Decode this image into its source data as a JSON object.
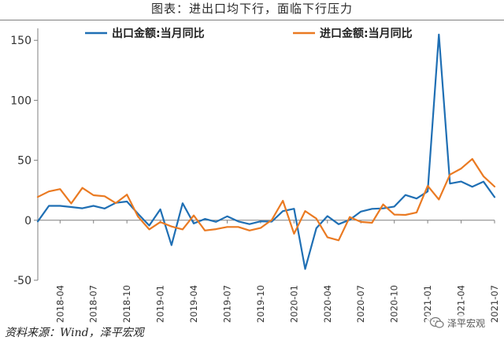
{
  "title": "图表：进出口均下行，面临下行压力",
  "source": "资料来源：Wind，泽平宏观",
  "watermark": "泽平宏观",
  "chart_data": {
    "type": "line",
    "ylim": [
      -50,
      160
    ],
    "yticks": [
      -50,
      0,
      50,
      100,
      150
    ],
    "xticks": [
      "2018-04",
      "2018-07",
      "2018-10",
      "2019-01",
      "2019-04",
      "2019-07",
      "2019-10",
      "2020-01",
      "2020-04",
      "2020-07",
      "2020-10",
      "2021-01",
      "2021-04",
      "2021-07"
    ],
    "x": [
      "2018-02",
      "2018-03",
      "2018-04",
      "2018-05",
      "2018-06",
      "2018-07",
      "2018-08",
      "2018-09",
      "2018-10",
      "2018-11",
      "2018-12",
      "2019-01",
      "2019-02",
      "2019-03",
      "2019-04",
      "2019-05",
      "2019-06",
      "2019-07",
      "2019-08",
      "2019-09",
      "2019-10",
      "2019-11",
      "2019-12",
      "2020-01",
      "2020-02",
      "2020-03",
      "2020-04",
      "2020-05",
      "2020-06",
      "2020-07",
      "2020-08",
      "2020-09",
      "2020-10",
      "2020-11",
      "2020-12",
      "2021-01",
      "2021-02",
      "2021-03",
      "2021-04",
      "2021-05",
      "2021-06",
      "2021-07"
    ],
    "grid": false,
    "legend_position": "top",
    "series": [
      {
        "name": "出口金额:当月同比",
        "color": "#1f6fb4",
        "values": [
          -1,
          12,
          12,
          11,
          10,
          12,
          9.8,
          14.5,
          15.6,
          5.4,
          -4.4,
          9.1,
          -20.7,
          14.2,
          -2.7,
          1.1,
          -1.3,
          3.3,
          -1,
          -3.2,
          -0.9,
          -1.1,
          7.6,
          9.6,
          -40.6,
          -6.6,
          3.5,
          -3.3,
          0.4,
          7.2,
          9.5,
          9.9,
          11.4,
          21.1,
          18.1,
          24,
          154.9,
          30.6,
          32.3,
          27.9,
          32.2,
          19.3
        ]
      },
      {
        "name": "进口金额:当月同比",
        "color": "#ea7a22",
        "values": [
          19.4,
          24,
          26,
          14,
          27,
          20.9,
          20,
          14.3,
          21.4,
          3,
          -7.6,
          -1.5,
          -5.2,
          -7.6,
          4,
          -8.5,
          -7.4,
          -5.6,
          -5.6,
          -8.5,
          -6.4,
          0.3,
          16.3,
          -11.2,
          7.7,
          1.4,
          -14.2,
          -16.7,
          2.7,
          -1.4,
          -2.1,
          13.2,
          4.7,
          4.5,
          6.5,
          28.7,
          17.3,
          38.1,
          43.1,
          51.1,
          36.7,
          28.1
        ]
      }
    ]
  }
}
